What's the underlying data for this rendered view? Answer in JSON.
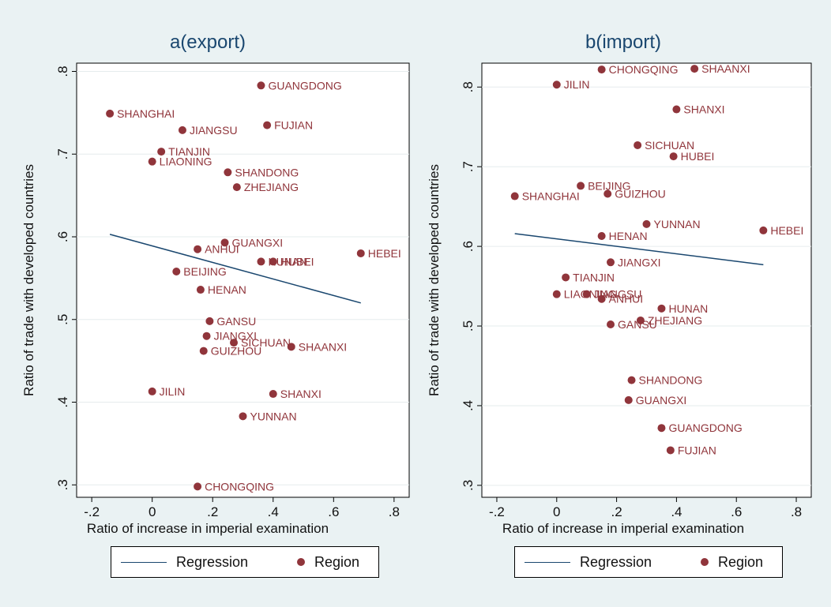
{
  "chart_data": [
    {
      "type": "scatter",
      "title": "a(export)",
      "xlabel": "Ratio of increase in imperial examination",
      "ylabel": "Ratio of trade with developed countries",
      "xlim": [
        -0.25,
        0.85
      ],
      "ylim": [
        0.285,
        0.81
      ],
      "xticks": [
        -0.2,
        0,
        0.2,
        0.4,
        0.6,
        0.8
      ],
      "xtick_labels": [
        "-.2",
        "0",
        ".2",
        ".4",
        ".6",
        ".8"
      ],
      "yticks": [
        0.3,
        0.4,
        0.5,
        0.6,
        0.7,
        0.8
      ],
      "ytick_labels": [
        ".3",
        ".4",
        ".5",
        ".6",
        ".7",
        ".8"
      ],
      "grid": true,
      "legend": {
        "position": "bottom",
        "entries": [
          "Regression",
          "Region"
        ]
      },
      "regression": {
        "x": [
          -0.14,
          0.69
        ],
        "y": [
          0.603,
          0.52
        ]
      },
      "points": [
        {
          "label": "GUANGDONG",
          "x": 0.36,
          "y": 0.783
        },
        {
          "label": "SHANGHAI",
          "x": -0.14,
          "y": 0.749
        },
        {
          "label": "JIANGSU",
          "x": 0.1,
          "y": 0.729
        },
        {
          "label": "FUJIAN",
          "x": 0.38,
          "y": 0.735
        },
        {
          "label": "TIANJIN",
          "x": 0.03,
          "y": 0.703
        },
        {
          "label": "LIAONING",
          "x": 0.0,
          "y": 0.691
        },
        {
          "label": "SHANDONG",
          "x": 0.25,
          "y": 0.678
        },
        {
          "label": "ZHEJIANG",
          "x": 0.28,
          "y": 0.66
        },
        {
          "label": "GUANGXI",
          "x": 0.24,
          "y": 0.593
        },
        {
          "label": "ANHUI",
          "x": 0.15,
          "y": 0.585
        },
        {
          "label": "HUNAN",
          "x": 0.36,
          "y": 0.57
        },
        {
          "label": "HUBEI",
          "x": 0.4,
          "y": 0.57
        },
        {
          "label": "HEBEI",
          "x": 0.69,
          "y": 0.58
        },
        {
          "label": "BEIJING",
          "x": 0.08,
          "y": 0.558
        },
        {
          "label": "HENAN",
          "x": 0.16,
          "y": 0.536
        },
        {
          "label": "GANSU",
          "x": 0.19,
          "y": 0.498
        },
        {
          "label": "JIANGXI",
          "x": 0.18,
          "y": 0.48
        },
        {
          "label": "SICHUAN",
          "x": 0.27,
          "y": 0.472
        },
        {
          "label": "SHAANXI",
          "x": 0.46,
          "y": 0.467
        },
        {
          "label": "GUIZHOU",
          "x": 0.17,
          "y": 0.462
        },
        {
          "label": "JILIN",
          "x": 0.0,
          "y": 0.413
        },
        {
          "label": "SHANXI",
          "x": 0.4,
          "y": 0.41
        },
        {
          "label": "YUNNAN",
          "x": 0.3,
          "y": 0.383
        },
        {
          "label": "CHONGQING",
          "x": 0.15,
          "y": 0.298
        }
      ]
    },
    {
      "type": "scatter",
      "title": "b(import)",
      "xlabel": "Ratio of increase in imperial examination",
      "ylabel": "Ratio of trade with developed countries",
      "xlim": [
        -0.25,
        0.85
      ],
      "ylim": [
        0.285,
        0.83
      ],
      "xticks": [
        -0.2,
        0,
        0.2,
        0.4,
        0.6,
        0.8
      ],
      "xtick_labels": [
        "-.2",
        "0",
        ".2",
        ".4",
        ".6",
        ".8"
      ],
      "yticks": [
        0.3,
        0.4,
        0.5,
        0.6,
        0.7,
        0.8
      ],
      "ytick_labels": [
        ".3",
        ".4",
        ".5",
        ".6",
        ".7",
        ".8"
      ],
      "grid": true,
      "legend": {
        "position": "bottom",
        "entries": [
          "Regression",
          "Region"
        ]
      },
      "regression": {
        "x": [
          -0.14,
          0.69
        ],
        "y": [
          0.616,
          0.577
        ]
      },
      "points": [
        {
          "label": "CHONGQING",
          "x": 0.15,
          "y": 0.822
        },
        {
          "label": "SHAANXI",
          "x": 0.46,
          "y": 0.823
        },
        {
          "label": "JILIN",
          "x": 0.0,
          "y": 0.803
        },
        {
          "label": "SHANXI",
          "x": 0.4,
          "y": 0.772
        },
        {
          "label": "SICHUAN",
          "x": 0.27,
          "y": 0.727
        },
        {
          "label": "HUBEI",
          "x": 0.39,
          "y": 0.713
        },
        {
          "label": "BEIJING",
          "x": 0.08,
          "y": 0.676
        },
        {
          "label": "GUIZHOU",
          "x": 0.17,
          "y": 0.666
        },
        {
          "label": "SHANGHAI",
          "x": -0.14,
          "y": 0.663
        },
        {
          "label": "YUNNAN",
          "x": 0.3,
          "y": 0.628
        },
        {
          "label": "HEBEI",
          "x": 0.69,
          "y": 0.62
        },
        {
          "label": "HENAN",
          "x": 0.15,
          "y": 0.613
        },
        {
          "label": "JIANGXI",
          "x": 0.18,
          "y": 0.58
        },
        {
          "label": "TIANJIN",
          "x": 0.03,
          "y": 0.561
        },
        {
          "label": "LIAONING",
          "x": 0.0,
          "y": 0.54
        },
        {
          "label": "JIANGSU",
          "x": 0.1,
          "y": 0.54
        },
        {
          "label": "ANHUI",
          "x": 0.15,
          "y": 0.534
        },
        {
          "label": "HUNAN",
          "x": 0.35,
          "y": 0.522
        },
        {
          "label": "ZHEJIANG",
          "x": 0.28,
          "y": 0.507
        },
        {
          "label": "GANSU",
          "x": 0.18,
          "y": 0.502
        },
        {
          "label": "SHANDONG",
          "x": 0.25,
          "y": 0.432
        },
        {
          "label": "GUANGXI",
          "x": 0.24,
          "y": 0.407
        },
        {
          "label": "GUANGDONG",
          "x": 0.35,
          "y": 0.372
        },
        {
          "label": "FUJIAN",
          "x": 0.38,
          "y": 0.344
        }
      ]
    }
  ]
}
